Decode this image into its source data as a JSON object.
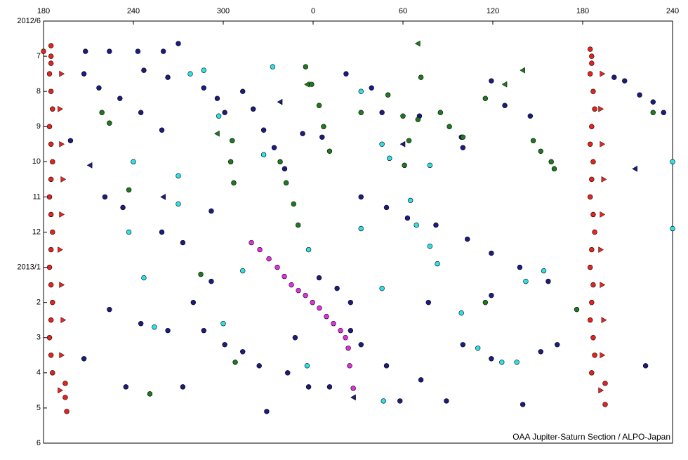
{
  "chart_data": {
    "type": "scatter",
    "credit": "OAA Jupiter-Saturn Section / ALPO-Japan",
    "xlim": [
      180,
      600
    ],
    "ylim": [
      0,
      12
    ],
    "xticks": [
      180,
      240,
      300,
      {
        "value": 360,
        "label": "0"
      },
      {
        "value": 420,
        "label": "60"
      },
      {
        "value": 480,
        "label": "120"
      },
      {
        "value": 540,
        "label": "180"
      },
      {
        "value": 600,
        "label": "240"
      }
    ],
    "yticks": [
      {
        "value": 0,
        "label": "2012/6"
      },
      {
        "value": 1,
        "label": "7"
      },
      {
        "value": 2,
        "label": "8"
      },
      {
        "value": 3,
        "label": "9"
      },
      {
        "value": 4,
        "label": "10"
      },
      {
        "value": 5,
        "label": "11"
      },
      {
        "value": 6,
        "label": "12"
      },
      {
        "value": 7,
        "label": "2013/1"
      },
      {
        "value": 8,
        "label": "2"
      },
      {
        "value": 9,
        "label": "3"
      },
      {
        "value": 10,
        "label": "4"
      },
      {
        "value": 11,
        "label": "5"
      },
      {
        "value": 12,
        "label": "6"
      }
    ],
    "series": [
      {
        "color": "#1c1c80",
        "marker": "circle",
        "x": [
          208,
          224,
          243,
          260,
          270,
          247,
          263,
          207,
          217,
          231,
          245,
          259,
          287,
          296,
          301,
          313,
          320,
          327,
          334,
          341,
          353,
          366,
          382,
          399,
          406,
          431,
          459,
          460,
          479,
          488,
          505,
          568,
          578,
          587,
          594,
          221,
          233,
          259,
          273,
          292,
          392,
          409,
          423,
          442,
          463,
          479,
          498,
          517,
          364,
          376,
          385,
          224,
          245,
          263,
          287,
          301,
          313,
          324,
          343,
          357,
          371,
          385,
          392,
          409,
          418,
          432,
          449,
          460,
          479,
          500,
          512,
          523,
          561,
          582,
          329,
          273,
          235,
          207,
          198,
          479,
          437,
          348,
          292,
          280
        ],
        "values": [
          0.86,
          0.86,
          0.86,
          0.86,
          0.64,
          1.4,
          1.6,
          1.5,
          1.9,
          2.2,
          2.6,
          3.1,
          1.9,
          2.2,
          2.6,
          2.0,
          2.5,
          3.1,
          3.6,
          4.2,
          3.2,
          3.3,
          1.5,
          1.9,
          2.6,
          2.7,
          3.3,
          3.6,
          1.7,
          2.4,
          2.7,
          1.7,
          2.1,
          2.3,
          2.6,
          5.0,
          5.3,
          6.0,
          6.3,
          5.4,
          5.0,
          5.3,
          5.6,
          5.8,
          6.2,
          6.6,
          7.0,
          7.4,
          7.3,
          7.6,
          8.0,
          8.2,
          8.6,
          8.8,
          8.8,
          9.2,
          9.4,
          9.8,
          10.0,
          10.4,
          10.4,
          8.8,
          9.2,
          9.8,
          10.8,
          10.2,
          10.8,
          9.2,
          9.6,
          10.9,
          9.4,
          9.2,
          1.6,
          9.8,
          11.1,
          10.4,
          10.4,
          9.6,
          3.4,
          7.8,
          8.0,
          9.0,
          7.4,
          8.0
        ]
      },
      {
        "color": "#1e7a1e",
        "marker": "circle",
        "x": [
          355,
          359,
          364,
          367,
          371,
          306,
          305,
          307,
          338,
          342,
          347,
          350,
          420,
          424,
          421,
          430,
          445,
          451,
          460,
          507,
          512,
          519,
          521,
          219,
          224,
          237,
          285,
          475,
          251,
          308,
          410,
          475,
          587,
          392,
          432,
          536
        ],
        "values": [
          1.3,
          1.8,
          2.4,
          3.0,
          3.7,
          3.4,
          4.0,
          4.6,
          4.0,
          4.6,
          5.2,
          5.8,
          2.7,
          3.4,
          4.1,
          2.8,
          2.6,
          3.0,
          3.3,
          3.4,
          3.7,
          4.0,
          4.2,
          2.6,
          2.9,
          4.8,
          7.2,
          8.0,
          10.6,
          9.7,
          2.1,
          2.2,
          2.6,
          2.6,
          1.6,
          8.2
        ]
      },
      {
        "color": "#30e0e8",
        "marker": "circle",
        "x": [
          278,
          287,
          333,
          297,
          240,
          270,
          270,
          237,
          247,
          254,
          300,
          313,
          327,
          357,
          392,
          406,
          411,
          438,
          425,
          429,
          438,
          443,
          392,
          406,
          407,
          356,
          459,
          470,
          486,
          496,
          502,
          514,
          600,
          600
        ],
        "values": [
          1.5,
          1.4,
          1.3,
          2.7,
          4.0,
          4.4,
          5.2,
          6.0,
          7.3,
          8.7,
          8.6,
          7.1,
          3.8,
          6.5,
          2.0,
          3.5,
          3.9,
          4.1,
          5.1,
          5.8,
          6.4,
          6.9,
          5.9,
          7.6,
          10.8,
          9.8,
          8.3,
          9.3,
          9.7,
          9.7,
          7.4,
          7.1,
          4.0,
          5.9
        ]
      },
      {
        "color": "#e030e0",
        "marker": "circle",
        "x": [
          318.8,
          324.4,
          330.5,
          336.1,
          340.8,
          345.5,
          350.2,
          354.9,
          359.6,
          364.2,
          368.9,
          373.6,
          378.3,
          381.6,
          383.5,
          384.4,
          386.8
        ],
        "values": [
          6.3,
          6.5,
          6.76,
          7.0,
          7.26,
          7.5,
          7.66,
          7.8,
          8.0,
          8.16,
          8.4,
          8.6,
          8.8,
          9.0,
          9.3,
          9.8,
          10.44
        ]
      },
      {
        "color": "#e8231e",
        "marker": "circle",
        "x": [
          180,
          185,
          184,
          185,
          186,
          184,
          185,
          186,
          185,
          184,
          185,
          186,
          185,
          184,
          185,
          186,
          185,
          184,
          185,
          186,
          185,
          185,
          194.5,
          194.5,
          195.5,
          546,
          545,
          547,
          548,
          546,
          545,
          547,
          546,
          545,
          547,
          548,
          546,
          545,
          547,
          546,
          545,
          547,
          548,
          546,
          545,
          546,
          555,
          555
        ],
        "values": [
          0.86,
          1.0,
          1.5,
          2.0,
          2.5,
          3.0,
          3.5,
          4.0,
          4.5,
          5.0,
          5.5,
          6.0,
          6.5,
          7.0,
          7.5,
          8.0,
          8.5,
          9.0,
          9.5,
          10.0,
          0.7,
          1.2,
          10.3,
          10.7,
          11.1,
          1.0,
          1.5,
          2.0,
          2.5,
          3.0,
          3.5,
          4.0,
          4.5,
          5.0,
          5.5,
          6.0,
          6.5,
          7.0,
          7.5,
          8.0,
          8.5,
          9.0,
          9.5,
          10.0,
          0.8,
          1.2,
          10.3,
          10.9
        ]
      },
      {
        "color": "#e8231e",
        "marker": "triangle-right",
        "x": [
          192,
          191,
          192,
          193,
          192,
          191,
          192,
          193,
          192,
          191,
          553,
          552,
          553,
          554,
          553,
          552,
          553,
          554,
          553,
          552
        ],
        "values": [
          1.5,
          2.5,
          3.5,
          4.5,
          5.5,
          6.5,
          7.5,
          8.5,
          9.5,
          10.5,
          1.5,
          2.5,
          3.5,
          4.5,
          5.5,
          6.5,
          7.5,
          8.5,
          9.5,
          10.5
        ]
      },
      {
        "color": "#1c1c80",
        "marker": "triangle-left",
        "x": [
          211,
          260,
          338,
          420,
          387,
          575
        ],
        "values": [
          4.1,
          5.0,
          2.3,
          3.5,
          10.7,
          4.2
        ]
      },
      {
        "color": "#1e7a1e",
        "marker": "triangle-left",
        "x": [
          356,
          430,
          488,
          500,
          296
        ],
        "values": [
          1.8,
          0.64,
          1.8,
          1.4,
          3.2
        ]
      }
    ]
  }
}
